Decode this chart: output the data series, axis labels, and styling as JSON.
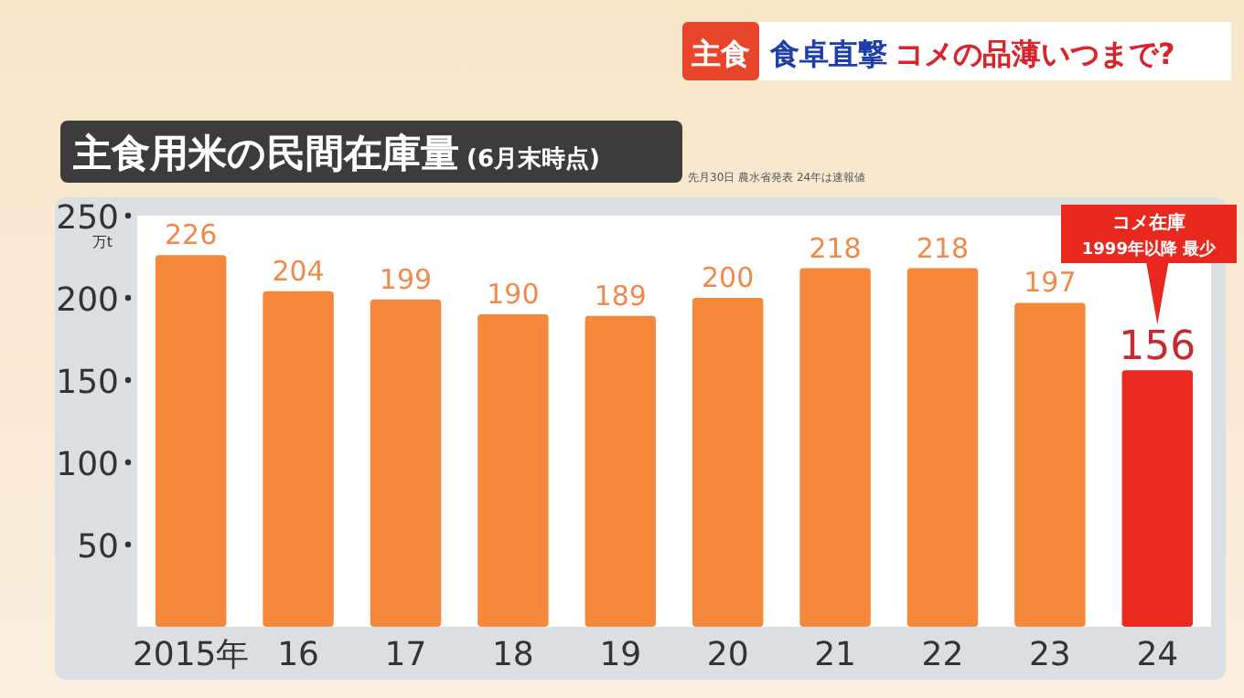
{
  "chart_data": {
    "type": "bar",
    "title": "主食用米の民間在庫量",
    "subtitle": "(6月末時点)",
    "ylabel": "万t",
    "categories": [
      "2015年",
      "16",
      "17",
      "18",
      "19",
      "20",
      "21",
      "22",
      "23",
      "24"
    ],
    "values": [
      226,
      204,
      199,
      190,
      189,
      200,
      218,
      218,
      197,
      156
    ],
    "colors": [
      "#f5883a",
      "#f5883a",
      "#f5883a",
      "#f5883a",
      "#f5883a",
      "#f5883a",
      "#f5883a",
      "#f5883a",
      "#f5883a",
      "#ea2a20"
    ],
    "ylim": [
      0,
      250
    ],
    "yticks": [
      50,
      100,
      150,
      200,
      250
    ],
    "data_labels": true,
    "grid": false,
    "annotations": [
      "主食",
      "食卓直撃 コメの品薄いつまで?",
      "先月30日 農水省発表 24年は速報値",
      "コメ在庫\n1999年以降 最少"
    ]
  }
}
